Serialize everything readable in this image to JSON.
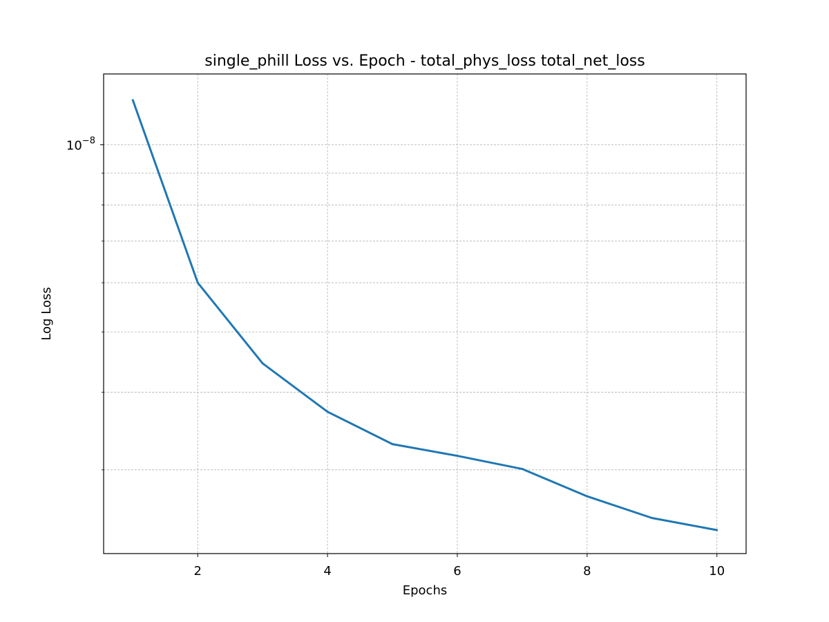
{
  "chart_data": {
    "type": "line",
    "title": "single_phill Loss vs. Epoch - total_phys_loss total_net_loss",
    "xlabel": "Epochs",
    "ylabel": "Log Loss",
    "x": [
      1,
      2,
      3,
      4,
      5,
      6,
      7,
      8,
      9,
      10
    ],
    "series": [
      {
        "values": [
          1.18e-08,
          6e-09,
          4.45e-09,
          3.72e-09,
          3.3e-09,
          3.16e-09,
          3.01e-09,
          2.72e-09,
          2.51e-09,
          2.4e-09
        ],
        "color": "#1f77b4"
      }
    ],
    "xlim": [
      0.55,
      10.45
    ],
    "ylim": [
      2.2e-09,
      1.3e-08
    ],
    "yscale": "log",
    "xticks": [
      2,
      4,
      6,
      8,
      10
    ],
    "xtick_labels": [
      "2",
      "4",
      "6",
      "8",
      "10"
    ],
    "yticks_major": [
      1e-08
    ],
    "ytick_major_labels": [
      {
        "base": "10",
        "exp": "−8"
      }
    ],
    "yticks_minor": [
      3e-09,
      4e-09,
      5e-09,
      6e-09,
      7e-09,
      8e-09,
      9e-09
    ],
    "grid": true,
    "grid_color": "#b0b0b0",
    "legend": false
  }
}
